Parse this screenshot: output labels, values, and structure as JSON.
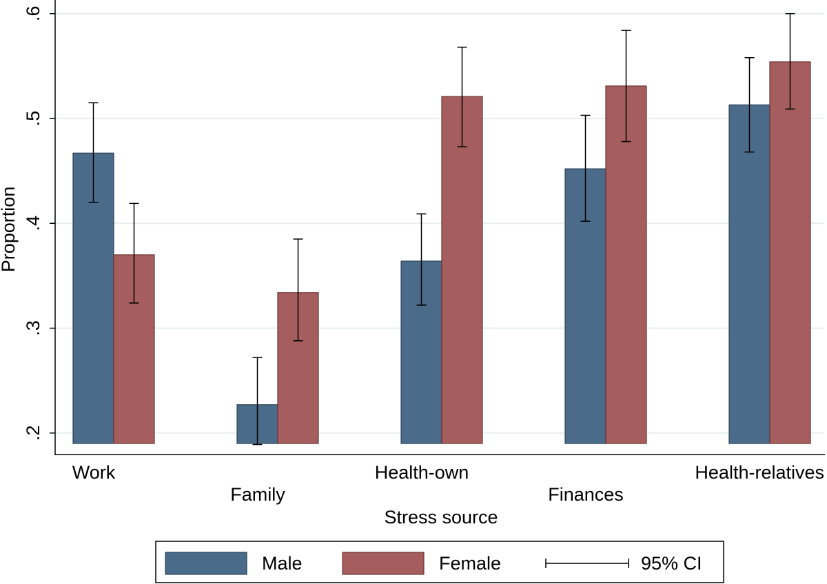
{
  "chart_data": {
    "type": "bar",
    "x_label": "Stress source",
    "y_label": "Proportion",
    "categories": [
      "Work",
      "Family",
      "Health-own",
      "Finances",
      "Health-relatives"
    ],
    "series": [
      {
        "name": "Male",
        "color": "#4a6b8a",
        "values": [
          0.467,
          0.227,
          0.364,
          0.452,
          0.513
        ],
        "ci_low": [
          0.42,
          0.189,
          0.322,
          0.402,
          0.468
        ],
        "ci_high": [
          0.515,
          0.272,
          0.409,
          0.503,
          0.558
        ]
      },
      {
        "name": "Female",
        "color": "#a55d5e",
        "values": [
          0.37,
          0.334,
          0.521,
          0.531,
          0.554
        ],
        "ci_low": [
          0.324,
          0.288,
          0.473,
          0.478,
          0.509
        ],
        "ci_high": [
          0.419,
          0.385,
          0.568,
          0.584,
          0.6
        ]
      }
    ],
    "ci_label": "95% CI",
    "ylim": [
      0.19,
      0.613
    ],
    "yticks": [
      {
        "value": 0.2,
        "label": ".2"
      },
      {
        "value": 0.3,
        "label": ".3"
      },
      {
        "value": 0.4,
        "label": ".4"
      },
      {
        "value": 0.5,
        "label": ".5"
      },
      {
        "value": 0.6,
        "label": ".6"
      }
    ],
    "grid": true
  }
}
